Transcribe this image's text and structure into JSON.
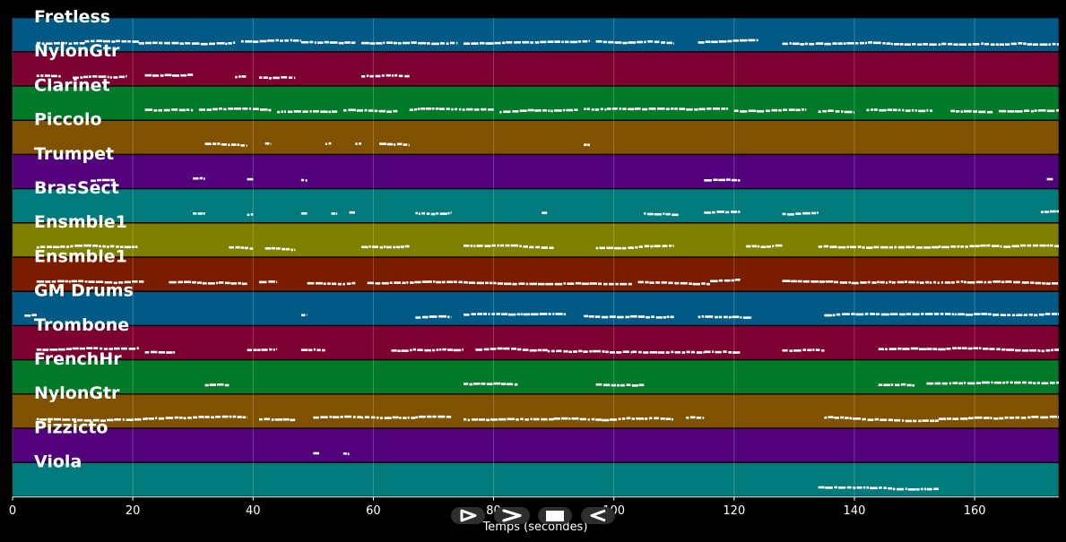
{
  "chart_data": {
    "type": "piano-roll",
    "xlabel": "Temps (secondes)",
    "xlim": [
      0,
      174
    ],
    "xticks": [
      0,
      20,
      40,
      60,
      80,
      100,
      120,
      140,
      160
    ],
    "grid": true,
    "tracks": [
      {
        "name": "Fretless",
        "color": "#005a85",
        "segments": [
          [
            4,
            12
          ],
          [
            12,
            21
          ],
          [
            21,
            37
          ],
          [
            38,
            48
          ],
          [
            48,
            57
          ],
          [
            58,
            74
          ],
          [
            75,
            96
          ],
          [
            97,
            110
          ],
          [
            114,
            124
          ],
          [
            128,
            174
          ]
        ]
      },
      {
        "name": "NylonGtr",
        "color": "#7c0030",
        "segments": [
          [
            4,
            8
          ],
          [
            10,
            19
          ],
          [
            22,
            30
          ],
          [
            37,
            39
          ],
          [
            41,
            47
          ],
          [
            58,
            66
          ]
        ]
      },
      {
        "name": "Clarinet",
        "color": "#007a28",
        "segments": [
          [
            22,
            30
          ],
          [
            31,
            43
          ],
          [
            44,
            54
          ],
          [
            55,
            64
          ],
          [
            66,
            80
          ],
          [
            81,
            94
          ],
          [
            95,
            112
          ],
          [
            112,
            119
          ],
          [
            120,
            132
          ],
          [
            134,
            140
          ],
          [
            142,
            153
          ],
          [
            156,
            163
          ],
          [
            164,
            174
          ]
        ]
      },
      {
        "name": "Piccolo",
        "color": "#805200",
        "segments": [
          [
            32,
            35
          ],
          [
            35,
            39
          ],
          [
            42,
            43
          ],
          [
            52,
            53
          ],
          [
            57,
            58
          ],
          [
            61,
            66
          ],
          [
            95,
            96
          ]
        ]
      },
      {
        "name": "Trumpet",
        "color": "#52007c",
        "segments": [
          [
            13,
            17
          ],
          [
            30,
            32
          ],
          [
            39,
            40
          ],
          [
            48,
            49
          ],
          [
            115,
            121
          ],
          [
            172,
            173
          ]
        ]
      },
      {
        "name": "BrasSect",
        "color": "#007a7a",
        "segments": [
          [
            30,
            32
          ],
          [
            39,
            40
          ],
          [
            48,
            49
          ],
          [
            53,
            54
          ],
          [
            56,
            57
          ],
          [
            67,
            73
          ],
          [
            88,
            89
          ],
          [
            105,
            111
          ],
          [
            115,
            121
          ],
          [
            128,
            134
          ],
          [
            171,
            174
          ]
        ]
      },
      {
        "name": "Ensmble1",
        "color": "#7f7f00",
        "segments": [
          [
            4,
            21
          ],
          [
            36,
            40
          ],
          [
            42,
            47
          ],
          [
            58,
            66
          ],
          [
            75,
            90
          ],
          [
            97,
            110
          ],
          [
            122,
            128
          ],
          [
            134,
            154
          ],
          [
            154,
            174
          ]
        ]
      },
      {
        "name": "Ensmble1",
        "color": "#7a1c00",
        "segments": [
          [
            4,
            22
          ],
          [
            26,
            39
          ],
          [
            41,
            44
          ],
          [
            49,
            57
          ],
          [
            59,
            69
          ],
          [
            69,
            103
          ],
          [
            104,
            116
          ],
          [
            116,
            121
          ],
          [
            128,
            137
          ],
          [
            137,
            174
          ]
        ]
      },
      {
        "name": "GM Drums",
        "color": "#005a85",
        "segments": [
          [
            2,
            4
          ],
          [
            48,
            49
          ],
          [
            67,
            73
          ],
          [
            75,
            92
          ],
          [
            95,
            110
          ],
          [
            114,
            123
          ],
          [
            135,
            174
          ]
        ]
      },
      {
        "name": "Trombone",
        "color": "#7c0030",
        "segments": [
          [
            4,
            21
          ],
          [
            22,
            27
          ],
          [
            39,
            44
          ],
          [
            48,
            52
          ],
          [
            63,
            75
          ],
          [
            77,
            89
          ],
          [
            89,
            103
          ],
          [
            103,
            115
          ],
          [
            115,
            121
          ],
          [
            128,
            135
          ],
          [
            144,
            152
          ],
          [
            152,
            174
          ]
        ]
      },
      {
        "name": "FrenchHr",
        "color": "#007a28",
        "segments": [
          [
            32,
            36
          ],
          [
            75,
            84
          ],
          [
            97,
            105
          ],
          [
            144,
            150
          ],
          [
            152,
            174
          ]
        ]
      },
      {
        "name": "NylonGtr",
        "color": "#805200",
        "segments": [
          [
            4,
            22
          ],
          [
            22,
            39
          ],
          [
            41,
            47
          ],
          [
            50,
            58
          ],
          [
            58,
            67
          ],
          [
            67,
            73
          ],
          [
            75,
            90
          ],
          [
            90,
            98
          ],
          [
            98,
            110
          ],
          [
            112,
            115
          ],
          [
            135,
            154
          ],
          [
            154,
            174
          ]
        ]
      },
      {
        "name": "Pizzicto",
        "color": "#52007c",
        "segments": [
          [
            50,
            51
          ],
          [
            55,
            56
          ]
        ]
      },
      {
        "name": "Viola",
        "color": "#007a7a",
        "segments": [
          [
            134,
            154
          ]
        ]
      }
    ]
  },
  "player_controls": [
    {
      "name": "play-button",
      "icon": "play-icon"
    },
    {
      "name": "forward-button",
      "icon": "forward-icon"
    },
    {
      "name": "stop-button",
      "icon": "stop-icon"
    },
    {
      "name": "rewind-button",
      "icon": "rewind-icon"
    }
  ]
}
